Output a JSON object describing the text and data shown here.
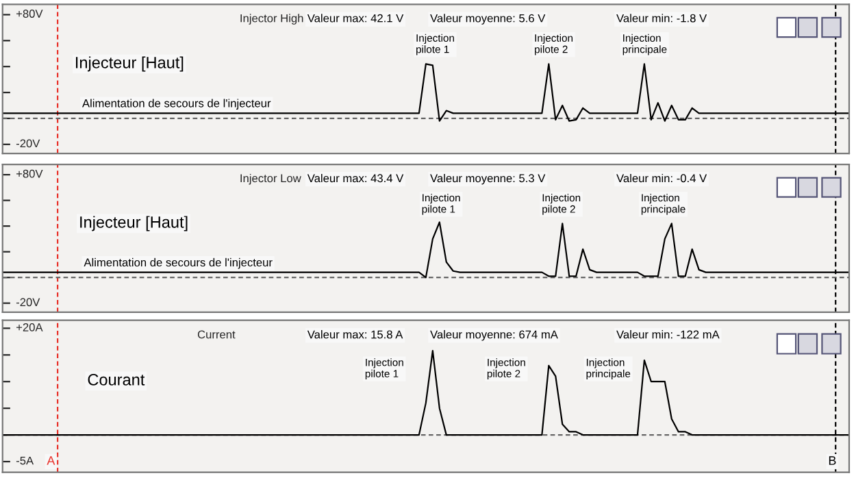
{
  "chart_data": [
    {
      "type": "line",
      "title": "Injector High",
      "categories": [
        null,
        null,
        null,
        null,
        null,
        null,
        null,
        null,
        null,
        null,
        null,
        null,
        null,
        null,
        null,
        null,
        null,
        null,
        null,
        null,
        null,
        null,
        null,
        null,
        null,
        null,
        null,
        null,
        null,
        null,
        null,
        null,
        null,
        null,
        null,
        null,
        null,
        null,
        null,
        null,
        null,
        null,
        null,
        null,
        null,
        null,
        null,
        null,
        null,
        null,
        null,
        null,
        null,
        null,
        null,
        null,
        null,
        null,
        null,
        null,
        null,
        null,
        null,
        null,
        null,
        null,
        null,
        null,
        null,
        null,
        null,
        null,
        null,
        null,
        null,
        null,
        null,
        null,
        null,
        null,
        null,
        null,
        null,
        null,
        null,
        null,
        null,
        null,
        null,
        null,
        null,
        null,
        null,
        null,
        null,
        null,
        null,
        null,
        null,
        null,
        null,
        null,
        null,
        null,
        null,
        null,
        null,
        null,
        null,
        null,
        null,
        null,
        null,
        null,
        null,
        null,
        null,
        null,
        null,
        null,
        null,
        null,
        null,
        null,
        null
      ],
      "series": [
        {
          "color": "#000000",
          "values": [
            4,
            4,
            4,
            4,
            4,
            4,
            4,
            4,
            4,
            4,
            4,
            4,
            4,
            4,
            4,
            4,
            4,
            4,
            4,
            4,
            4,
            4,
            4,
            4,
            4,
            4,
            4,
            4,
            4,
            4,
            4,
            4,
            4,
            4,
            4,
            4,
            4,
            4,
            4,
            4,
            4,
            4,
            4,
            4,
            4,
            4,
            4,
            4,
            4,
            4,
            4,
            4,
            4,
            4,
            4,
            4,
            4,
            4,
            4,
            4,
            4,
            4,
            42,
            41,
            -2,
            6,
            4,
            4,
            4,
            4,
            4,
            4,
            4,
            4,
            4,
            4,
            4,
            4,
            4,
            4,
            42,
            -1,
            10,
            -2,
            -1,
            8,
            4,
            4,
            4,
            4,
            4,
            4,
            4,
            4,
            42,
            -1,
            12,
            -2,
            10,
            -1,
            -1,
            8,
            4,
            4,
            4,
            4,
            4,
            4,
            4,
            4,
            4,
            4,
            4,
            4,
            4,
            4,
            4,
            4,
            4,
            4,
            4,
            4,
            4,
            4,
            4
          ]
        }
      ],
      "ylim": [
        -27,
        88
      ],
      "yticks": [
        {
          "value": 80,
          "label": "+80V"
        },
        {
          "value": 60,
          "label": null
        },
        {
          "value": 40,
          "label": null
        },
        {
          "value": 20,
          "label": null
        },
        {
          "value": 0,
          "label": null
        },
        {
          "value": -20,
          "label": "-20V"
        }
      ],
      "tick_labels": "y",
      "ref_lines": [
        {
          "axis": "y",
          "value": 0,
          "label": null,
          "color": "#666666",
          "line_style": "dashed"
        }
      ],
      "annotations": [
        "Valeur max: 42.1 V",
        "Valeur moyenne: 5.6 V",
        "Valeur min: -1.8 V",
        "Injecteur [Haut]",
        "Alimentation de secours de l'injecteur",
        "Injection\npilote 1",
        "Injection\npilote 2",
        "Injection\nprincipale"
      ]
    },
    {
      "type": "line",
      "title": "Injector Low",
      "categories": [
        null,
        null,
        null,
        null,
        null,
        null,
        null,
        null,
        null,
        null,
        null,
        null,
        null,
        null,
        null,
        null,
        null,
        null,
        null,
        null,
        null,
        null,
        null,
        null,
        null,
        null,
        null,
        null,
        null,
        null,
        null,
        null,
        null,
        null,
        null,
        null,
        null,
        null,
        null,
        null,
        null,
        null,
        null,
        null,
        null,
        null,
        null,
        null,
        null,
        null,
        null,
        null,
        null,
        null,
        null,
        null,
        null,
        null,
        null,
        null,
        null,
        null,
        null,
        null,
        null,
        null,
        null,
        null,
        null,
        null,
        null,
        null,
        null,
        null,
        null,
        null,
        null,
        null,
        null,
        null,
        null,
        null,
        null,
        null,
        null,
        null,
        null,
        null,
        null,
        null,
        null,
        null,
        null,
        null,
        null,
        null,
        null,
        null,
        null,
        null,
        null,
        null,
        null,
        null,
        null,
        null,
        null,
        null,
        null,
        null,
        null,
        null,
        null,
        null,
        null,
        null,
        null,
        null,
        null,
        null,
        null,
        null,
        null,
        null,
        null
      ],
      "series": [
        {
          "color": "#000000",
          "values": [
            4,
            4,
            4,
            4,
            4,
            4,
            4,
            4,
            4,
            4,
            4,
            4,
            4,
            4,
            4,
            4,
            4,
            4,
            4,
            4,
            4,
            4,
            4,
            4,
            4,
            4,
            4,
            4,
            4,
            4,
            4,
            4,
            4,
            4,
            4,
            4,
            4,
            4,
            4,
            4,
            4,
            4,
            4,
            4,
            4,
            4,
            4,
            4,
            4,
            4,
            4,
            4,
            4,
            4,
            4,
            4,
            4,
            4,
            4,
            4,
            4,
            4,
            0,
            30,
            43,
            12,
            5,
            4,
            4,
            4,
            4,
            4,
            4,
            4,
            4,
            4,
            4,
            4,
            4,
            4,
            1,
            1,
            42,
            1,
            1,
            22,
            6,
            4,
            4,
            4,
            4,
            4,
            4,
            4,
            1,
            1,
            1,
            30,
            42,
            1,
            1,
            22,
            6,
            4,
            4,
            4,
            4,
            4,
            4,
            4,
            4,
            4,
            4,
            4,
            4,
            4,
            4,
            4,
            4,
            4,
            4,
            4,
            4,
            4,
            4
          ]
        }
      ],
      "ylim": [
        -27,
        88
      ],
      "yticks": [
        {
          "value": 80,
          "label": "+80V"
        },
        {
          "value": 60,
          "label": null
        },
        {
          "value": 40,
          "label": null
        },
        {
          "value": 20,
          "label": null
        },
        {
          "value": 0,
          "label": null
        },
        {
          "value": -20,
          "label": "-20V"
        }
      ],
      "tick_labels": "y",
      "ref_lines": [
        {
          "axis": "y",
          "value": 0,
          "label": null,
          "color": "#666666",
          "line_style": "dashed"
        }
      ],
      "annotations": [
        "Valeur max: 43.4 V",
        "Valeur moyenne: 5.3 V",
        "Valeur min: -0.4 V",
        "Injecteur [Haut]",
        "Alimentation de secours de l'injecteur",
        "Injection\npilote 1",
        "Injection\npilote 2",
        "Injection\nprincipale"
      ]
    },
    {
      "type": "line",
      "title": "Current",
      "categories": [
        null,
        null,
        null,
        null,
        null,
        null,
        null,
        null,
        null,
        null,
        null,
        null,
        null,
        null,
        null,
        null,
        null,
        null,
        null,
        null,
        null,
        null,
        null,
        null,
        null,
        null,
        null,
        null,
        null,
        null,
        null,
        null,
        null,
        null,
        null,
        null,
        null,
        null,
        null,
        null,
        null,
        null,
        null,
        null,
        null,
        null,
        null,
        null,
        null,
        null,
        null,
        null,
        null,
        null,
        null,
        null,
        null,
        null,
        null,
        null,
        null,
        null,
        null,
        null,
        null,
        null,
        null,
        null,
        null,
        null,
        null,
        null,
        null,
        null,
        null,
        null,
        null,
        null,
        null,
        null,
        null,
        null,
        null,
        null,
        null,
        null,
        null,
        null,
        null,
        null,
        null,
        null,
        null,
        null,
        null,
        null,
        null,
        null,
        null,
        null,
        null,
        null,
        null,
        null,
        null,
        null,
        null,
        null,
        null,
        null,
        null,
        null,
        null,
        null,
        null,
        null,
        null,
        null,
        null,
        null,
        null,
        null,
        null,
        null,
        null
      ],
      "series": [
        {
          "color": "#000000",
          "values": [
            0,
            0,
            0,
            0,
            0,
            0,
            0,
            0,
            0,
            0,
            0,
            0,
            0,
            0,
            0,
            0,
            0,
            0,
            0,
            0,
            0,
            0,
            0,
            0,
            0,
            0,
            0,
            0,
            0,
            0,
            0,
            0,
            0,
            0,
            0,
            0,
            0,
            0,
            0,
            0,
            0,
            0,
            0,
            0,
            0,
            0,
            0,
            0,
            0,
            0,
            0,
            0,
            0,
            0,
            0,
            0,
            0,
            0,
            0,
            0,
            0,
            0,
            6,
            15.8,
            5,
            0,
            0,
            0,
            0,
            0,
            0,
            0,
            0,
            0,
            0,
            0,
            0,
            0,
            0,
            0,
            13,
            11,
            2,
            0.6,
            0.6,
            0,
            0,
            0,
            0,
            0,
            0,
            0,
            0,
            0,
            14,
            10,
            10,
            10,
            3,
            0.6,
            0.6,
            0,
            0,
            0,
            0,
            0,
            0,
            0,
            0,
            0,
            0,
            0,
            0,
            0,
            0,
            0,
            0,
            0,
            0,
            0,
            0,
            0,
            0,
            0,
            0
          ]
        }
      ],
      "ylim": [
        -7,
        21.5
      ],
      "yticks": [
        {
          "value": 20,
          "label": "+20A"
        },
        {
          "value": 15,
          "label": null
        },
        {
          "value": 10,
          "label": null
        },
        {
          "value": 5,
          "label": null
        },
        {
          "value": 0,
          "label": null
        },
        {
          "value": -5,
          "label": "-5A"
        }
      ],
      "tick_labels": "y",
      "ref_lines": [
        {
          "axis": "y",
          "value": 0,
          "label": null,
          "color": "#666666",
          "line_style": "dashed"
        }
      ],
      "annotations": [
        "Valeur max: 15.8 A",
        "Valeur moyenne: 674 mA",
        "Valeur min: -122 mA",
        "Courant",
        "Injection\npilote 1",
        "Injection\npilote 2",
        "Injection\nprincipale",
        "A",
        "B"
      ]
    }
  ]
}
